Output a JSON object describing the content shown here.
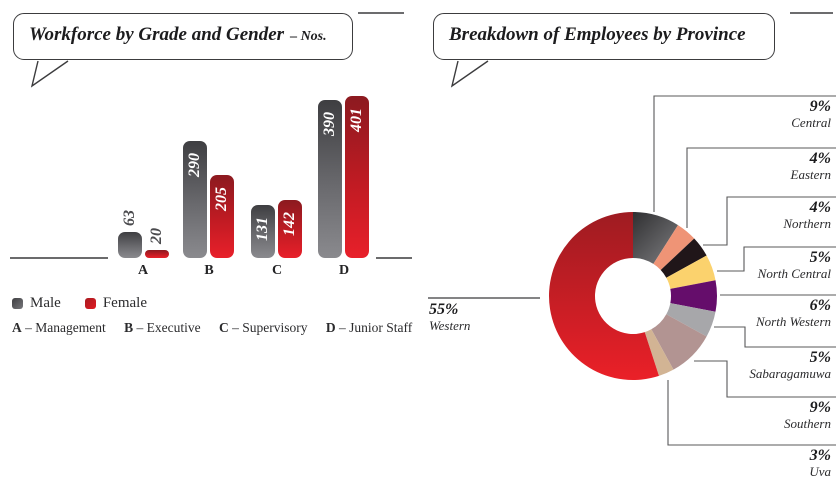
{
  "left_chart": {
    "title": "Workforce by Grade and Gender",
    "title_suffix": "– Nos.",
    "legend": [
      {
        "label": "Male"
      },
      {
        "label": "Female"
      }
    ],
    "key": [
      {
        "letter": "A",
        "rest": "– Management"
      },
      {
        "letter": "B",
        "rest": "– Executive"
      },
      {
        "letter": "C",
        "rest": "– Supervisory"
      },
      {
        "letter": "D",
        "rest": "– Junior Staff"
      }
    ]
  },
  "right_chart": {
    "title": "Breakdown of Employees by Province"
  },
  "colors": {
    "male_gradient": [
      "#3e3e41",
      "#8a8a8e"
    ],
    "female_gradient": [
      "#8c1a20",
      "#e8202a"
    ],
    "callout_line": "#58585a",
    "accent_red": "#e8202a"
  },
  "chart_data": [
    {
      "type": "bar",
      "title": "Workforce by Grade and Gender – Nos.",
      "categories": [
        "A",
        "B",
        "C",
        "D"
      ],
      "category_names": [
        "Management",
        "Executive",
        "Supervisory",
        "Junior Staff"
      ],
      "series": [
        {
          "name": "Male",
          "values": [
            63,
            290,
            131,
            390
          ]
        },
        {
          "name": "Female",
          "values": [
            20,
            205,
            142,
            401
          ]
        }
      ],
      "ylim": [
        0,
        401
      ],
      "grid": false,
      "legend_position": "bottom-left"
    },
    {
      "type": "pie",
      "subtype": "donut",
      "title": "Breakdown of Employees by Province",
      "legend_position": "callouts",
      "segments": [
        {
          "label": "Central",
          "pct": 9,
          "pct_text": "9%",
          "color": [
            "#2e2e30",
            "#939396"
          ],
          "gradient_axis": [
            640,
            203,
            703,
            263
          ]
        },
        {
          "label": "Eastern",
          "pct": 4,
          "pct_text": "4%",
          "color": "#ef9476"
        },
        {
          "label": "Northern",
          "pct": 4,
          "pct_text": "4%",
          "color": "#201619"
        },
        {
          "label": "North Central",
          "pct": 5,
          "pct_text": "5%",
          "color": "#fbd26d"
        },
        {
          "label": "North Western",
          "pct": 6,
          "pct_text": "6%",
          "color": "#650d6b"
        },
        {
          "label": "Sabaragamuwa",
          "pct": 5,
          "pct_text": "5%",
          "color": "#a7a7aa"
        },
        {
          "label": "Southern",
          "pct": 9,
          "pct_text": "9%",
          "color": "#b29492"
        },
        {
          "label": "Uva",
          "pct": 3,
          "pct_text": "3%",
          "color": "#d2b494"
        },
        {
          "label": "Western",
          "pct": 55,
          "pct_text": "55%",
          "color": [
            "#9a1b21",
            "#ee2028"
          ],
          "gradient_axis": [
            633,
            203,
            633,
            388
          ]
        }
      ]
    }
  ]
}
